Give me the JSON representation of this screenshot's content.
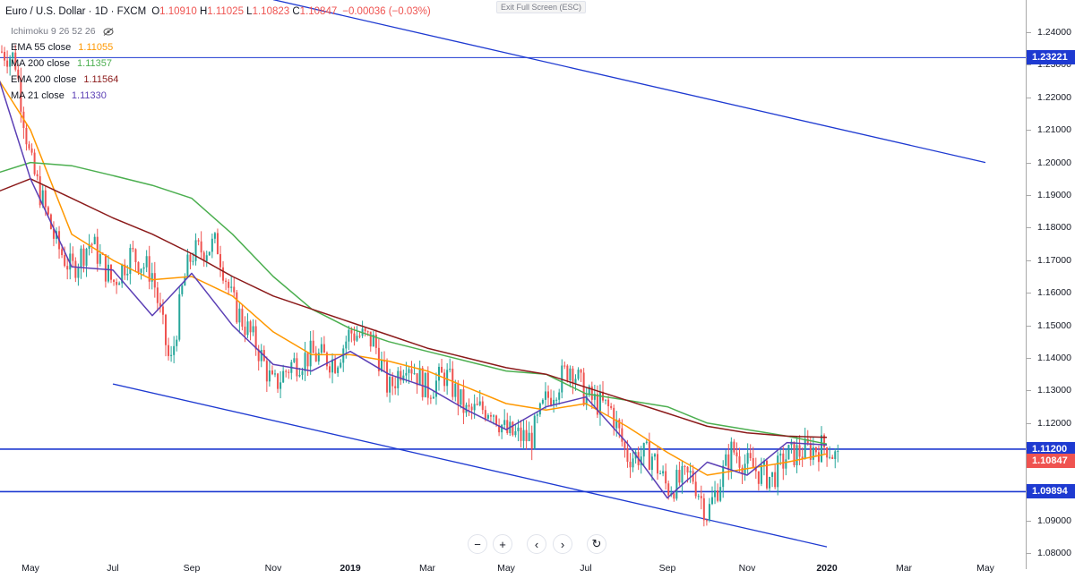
{
  "header": {
    "symbol": "Euro / U.S. Dollar · 1D · FXCM",
    "open_label": "O",
    "open": "1.10910",
    "high_label": "H",
    "high": "1.11025",
    "low_label": "L",
    "low": "1.10823",
    "close_label": "C",
    "close": "1.10847",
    "change": "−0.00036 (−0.03%)"
  },
  "exit_fullscreen": "Exit Full Screen (ESC)",
  "indicators": [
    {
      "name": "Ichimoku 9 26 52 26",
      "value": "",
      "color": "#787b86"
    },
    {
      "name": "EMA 55 close",
      "value": "1.11055",
      "color": "#ff9800"
    },
    {
      "name": "MA 200 close",
      "value": "1.11357",
      "color": "#4caf50"
    },
    {
      "name": "EMA 200 close",
      "value": "1.11564",
      "color": "#8b1a1a"
    },
    {
      "name": "MA 21 close",
      "value": "1.11330",
      "color": "#5b3fb5"
    }
  ],
  "price_axis": [
    "1.24000",
    "1.23000",
    "1.22000",
    "1.21000",
    "1.20000",
    "1.19000",
    "1.18000",
    "1.17000",
    "1.16000",
    "1.15000",
    "1.14000",
    "1.13000",
    "1.12000",
    "1.11000",
    "1.10000",
    "1.09000",
    "1.08000"
  ],
  "price_tags": [
    {
      "label": "1.23221",
      "value": 1.23221,
      "color": "#1e3ad1"
    },
    {
      "label": "1.11200",
      "value": 1.112,
      "color": "#1e3ad1"
    },
    {
      "label": "1.10847",
      "value": 1.10847,
      "color": "#ef5350"
    },
    {
      "label": "1.09894",
      "value": 1.09894,
      "color": "#1e3ad1"
    }
  ],
  "time_axis": [
    {
      "label": "May",
      "bold": false
    },
    {
      "label": "Jul",
      "bold": false
    },
    {
      "label": "Sep",
      "bold": false
    },
    {
      "label": "Nov",
      "bold": false
    },
    {
      "label": "2019",
      "bold": true
    },
    {
      "label": "Mar",
      "bold": false
    },
    {
      "label": "May",
      "bold": false
    },
    {
      "label": "Jul",
      "bold": false
    },
    {
      "label": "Sep",
      "bold": false
    },
    {
      "label": "Nov",
      "bold": false
    },
    {
      "label": "2020",
      "bold": true
    },
    {
      "label": "Mar",
      "bold": false
    },
    {
      "label": "May",
      "bold": false
    }
  ],
  "nav": {
    "zoom_out": "−",
    "zoom_in": "+",
    "back": "‹",
    "forward": "›",
    "reset": "↻"
  },
  "colors": {
    "up": "#26a69a",
    "down": "#ef5350",
    "trendline": "#1e3ad1",
    "ema55": "#ff9800",
    "ma200": "#4caf50",
    "ema200": "#8b1a1a",
    "ma21": "#5b3fb5"
  },
  "chart_data": {
    "type": "candlestick",
    "symbol": "Euro / U.S. Dollar",
    "timeframe": "1D",
    "ylim": [
      1.08,
      1.245
    ],
    "horizontal_levels": [
      1.23221,
      1.112,
      1.09894
    ],
    "trendlines": [
      {
        "from": [
          "2018-11",
          1.25
        ],
        "to": [
          "2020-05",
          1.2
        ]
      },
      {
        "from": [
          "2018-07",
          1.132
        ],
        "to": [
          "2020-01",
          1.082
        ]
      }
    ],
    "series": [
      {
        "name": "EMA 55 close",
        "points": [
          [
            "2018-04",
            1.23
          ],
          [
            "2018-05",
            1.21
          ],
          [
            "2018-06",
            1.178
          ],
          [
            "2018-07",
            1.17
          ],
          [
            "2018-08",
            1.164
          ],
          [
            "2018-09",
            1.165
          ],
          [
            "2018-10",
            1.159
          ],
          [
            "2018-11",
            1.148
          ],
          [
            "2018-12",
            1.141
          ],
          [
            "2019-01",
            1.141
          ],
          [
            "2019-02",
            1.139
          ],
          [
            "2019-03",
            1.136
          ],
          [
            "2019-04",
            1.131
          ],
          [
            "2019-05",
            1.126
          ],
          [
            "2019-06",
            1.124
          ],
          [
            "2019-07",
            1.126
          ],
          [
            "2019-08",
            1.119
          ],
          [
            "2019-09",
            1.111
          ],
          [
            "2019-10",
            1.104
          ],
          [
            "2019-11",
            1.106
          ],
          [
            "2019-12",
            1.108
          ],
          [
            "2020-01",
            1.11055
          ]
        ]
      },
      {
        "name": "MA 200 close",
        "points": [
          [
            "2018-04",
            1.196
          ],
          [
            "2018-05",
            1.2
          ],
          [
            "2018-06",
            1.199
          ],
          [
            "2018-07",
            1.196
          ],
          [
            "2018-08",
            1.193
          ],
          [
            "2018-09",
            1.189
          ],
          [
            "2018-10",
            1.178
          ],
          [
            "2018-11",
            1.165
          ],
          [
            "2018-12",
            1.155
          ],
          [
            "2019-01",
            1.149
          ],
          [
            "2019-02",
            1.145
          ],
          [
            "2019-03",
            1.142
          ],
          [
            "2019-04",
            1.139
          ],
          [
            "2019-05",
            1.136
          ],
          [
            "2019-06",
            1.135
          ],
          [
            "2019-07",
            1.129
          ],
          [
            "2019-08",
            1.127
          ],
          [
            "2019-09",
            1.125
          ],
          [
            "2019-10",
            1.12
          ],
          [
            "2019-11",
            1.118
          ],
          [
            "2019-12",
            1.116
          ],
          [
            "2020-01",
            1.11357
          ]
        ]
      },
      {
        "name": "EMA 200 close",
        "points": [
          [
            "2018-04",
            1.19
          ],
          [
            "2018-05",
            1.195
          ],
          [
            "2018-06",
            1.189
          ],
          [
            "2018-07",
            1.183
          ],
          [
            "2018-08",
            1.178
          ],
          [
            "2018-09",
            1.172
          ],
          [
            "2018-10",
            1.165
          ],
          [
            "2018-11",
            1.159
          ],
          [
            "2018-12",
            1.155
          ],
          [
            "2019-01",
            1.151
          ],
          [
            "2019-02",
            1.147
          ],
          [
            "2019-03",
            1.143
          ],
          [
            "2019-04",
            1.14
          ],
          [
            "2019-05",
            1.137
          ],
          [
            "2019-06",
            1.135
          ],
          [
            "2019-07",
            1.131
          ],
          [
            "2019-08",
            1.127
          ],
          [
            "2019-09",
            1.123
          ],
          [
            "2019-10",
            1.119
          ],
          [
            "2019-11",
            1.117
          ],
          [
            "2019-12",
            1.116
          ],
          [
            "2020-01",
            1.11564
          ]
        ]
      },
      {
        "name": "MA 21 close",
        "points": [
          [
            "2018-04",
            1.235
          ],
          [
            "2018-05",
            1.195
          ],
          [
            "2018-06",
            1.168
          ],
          [
            "2018-07",
            1.167
          ],
          [
            "2018-08",
            1.153
          ],
          [
            "2018-09",
            1.166
          ],
          [
            "2018-10",
            1.15
          ],
          [
            "2018-11",
            1.138
          ],
          [
            "2018-12",
            1.136
          ],
          [
            "2019-01",
            1.142
          ],
          [
            "2019-02",
            1.135
          ],
          [
            "2019-03",
            1.131
          ],
          [
            "2019-04",
            1.124
          ],
          [
            "2019-05",
            1.118
          ],
          [
            "2019-06",
            1.125
          ],
          [
            "2019-07",
            1.128
          ],
          [
            "2019-08",
            1.114
          ],
          [
            "2019-09",
            1.097
          ],
          [
            "2019-10",
            1.108
          ],
          [
            "2019-11",
            1.104
          ],
          [
            "2019-12",
            1.114
          ],
          [
            "2020-01",
            1.1133
          ]
        ]
      }
    ],
    "candles_path": [
      [
        "2018-04",
        1.236
      ],
      [
        "2018-04-20",
        1.232
      ],
      [
        "2018-05",
        1.2
      ],
      [
        "2018-05-20",
        1.175
      ],
      [
        "2018-06",
        1.167
      ],
      [
        "2018-06-15",
        1.176
      ],
      [
        "2018-07",
        1.163
      ],
      [
        "2018-07-15",
        1.172
      ],
      [
        "2018-08",
        1.166
      ],
      [
        "2018-08-15",
        1.137
      ],
      [
        "2018-08-25",
        1.163
      ],
      [
        "2018-09",
        1.172
      ],
      [
        "2018-09-20",
        1.175
      ],
      [
        "2018-10",
        1.157
      ],
      [
        "2018-10-20",
        1.143
      ],
      [
        "2018-11",
        1.131
      ],
      [
        "2018-11-15",
        1.138
      ],
      [
        "2018-12",
        1.141
      ],
      [
        "2018-12-20",
        1.139
      ],
      [
        "2019-01",
        1.148
      ],
      [
        "2019-01-20",
        1.145
      ],
      [
        "2019-02",
        1.13
      ],
      [
        "2019-02-15",
        1.14
      ],
      [
        "2019-03",
        1.13
      ],
      [
        "2019-03-15",
        1.135
      ],
      [
        "2019-04",
        1.123
      ],
      [
        "2019-04-20",
        1.125
      ],
      [
        "2019-05",
        1.117
      ],
      [
        "2019-05-20",
        1.115
      ],
      [
        "2019-06",
        1.127
      ],
      [
        "2019-06-20",
        1.138
      ],
      [
        "2019-07",
        1.128
      ],
      [
        "2019-07-20",
        1.124
      ],
      [
        "2019-08",
        1.11
      ],
      [
        "2019-08-20",
        1.11
      ],
      [
        "2019-09",
        1.1
      ],
      [
        "2019-09-20",
        1.104
      ],
      [
        "2019-10",
        1.092
      ],
      [
        "2019-10-20",
        1.112
      ],
      [
        "2019-11",
        1.107
      ],
      [
        "2019-11-20",
        1.103
      ],
      [
        "2019-12",
        1.11
      ],
      [
        "2019-12-20",
        1.112
      ],
      [
        "2020-01",
        1.113
      ],
      [
        "2020-01-10",
        1.1085
      ]
    ]
  }
}
